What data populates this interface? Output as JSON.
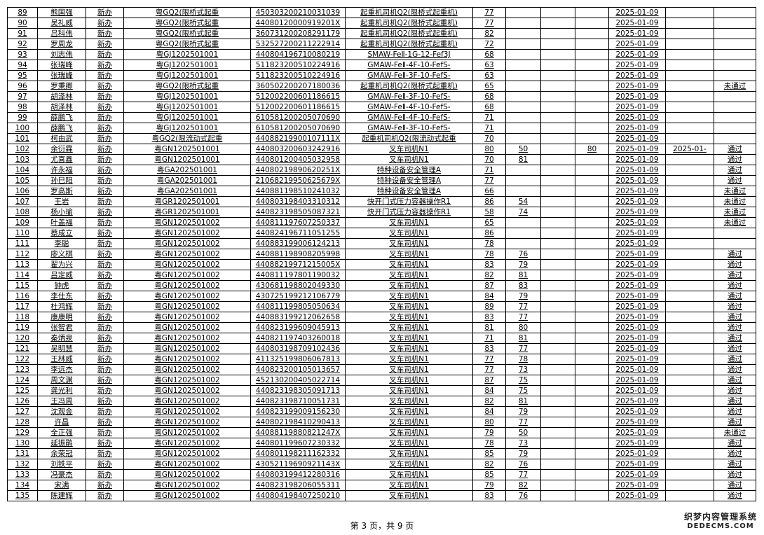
{
  "rows": [
    [
      "89",
      "熊国强",
      "新办",
      "粤GQ2(限桥式起重",
      "450303200210031039",
      "起重机司机Q2(限桥式起重机)",
      "77",
      "",
      "",
      "",
      "2025-01-09",
      "",
      ""
    ],
    [
      "90",
      "吴礼威",
      "新办",
      "粤GQ2(限桥式起重",
      "44080120000919201X",
      "起重机司机Q2(限桥式起重机)",
      "77",
      "",
      "",
      "",
      "2025-01-09",
      "",
      ""
    ],
    [
      "91",
      "吕科伟",
      "新办",
      "粤GQ2(限桥式起重",
      "360731200208291179",
      "起重机司机Q2(限桥式起重机)",
      "82",
      "",
      "",
      "",
      "2025-01-09",
      "",
      ""
    ],
    [
      "92",
      "罗周龙",
      "新办",
      "粤GQ2(限桥式起重",
      "532527200211222914",
      "起重机司机Q2(限桥式起重机)",
      "72",
      "",
      "",
      "",
      "2025-01-09",
      "",
      ""
    ],
    [
      "93",
      "刘志伟",
      "新办",
      "粤GJ1202501001",
      "440804196710080219",
      "SMAW-FeⅡ-1G-12-Fef3J",
      "68",
      "",
      "",
      "",
      "2025-01-09",
      "",
      ""
    ],
    [
      "94",
      "张瑞峰",
      "新办",
      "粤GJ1202501001",
      "511823200510224916",
      "GMAW-FeⅡ-4F-10-FefS-",
      "63",
      "",
      "",
      "",
      "2025-01-09",
      "",
      ""
    ],
    [
      "95",
      "张瑞峰",
      "新办",
      "粤GJ1202501001",
      "511823200510224916",
      "GMAW-FeⅡ-3F-10-FefS-",
      "63",
      "",
      "",
      "",
      "2025-01-09",
      "",
      ""
    ],
    [
      "96",
      "罗秉卿",
      "新办",
      "粤GQ2(限桥式起重",
      "360502200207180036",
      "起重机司机Q2(限桥式起重机)",
      "65",
      "",
      "",
      "",
      "2025-01-09",
      "",
      "未通过"
    ],
    [
      "97",
      "胡泽林",
      "新办",
      "粤GJ1202501001",
      "512002200601186615",
      "GMAW-FeⅡ-3F-10-FefS-",
      "68",
      "",
      "",
      "",
      "2025-01-09",
      "",
      ""
    ],
    [
      "98",
      "胡泽林",
      "新办",
      "粤GJ1202501001",
      "512002200601186615",
      "GMAW-FeⅡ-4F-10-FefS-",
      "68",
      "",
      "",
      "",
      "2025-01-09",
      "",
      ""
    ],
    [
      "99",
      "薛鹏飞",
      "新办",
      "粤GJ1202501001",
      "610581200205070690",
      "GMAW-FeⅡ-4F-10-FefS-",
      "71",
      "",
      "",
      "",
      "2025-01-09",
      "",
      ""
    ],
    [
      "100",
      "薛鹏飞",
      "新办",
      "粤GJ1202501001",
      "610581200205070690",
      "GMAW-FeⅡ-3F-10-FefS-",
      "71",
      "",
      "",
      "",
      "2025-01-09",
      "",
      ""
    ],
    [
      "101",
      "柯由武",
      "新办",
      "粤GQ2(限流动式起重",
      "44088219900107111X",
      "起重机司机Q2(限流动式起重",
      "70",
      "",
      "",
      "",
      "2025-01-09",
      "",
      ""
    ],
    [
      "102",
      "余衍霖",
      "新办",
      "粤GN1202501001",
      "440803200603242916",
      "叉车司机N1",
      "80",
      "50",
      "",
      "80",
      "2025-01-09",
      "2025-01-",
      "通过"
    ],
    [
      "103",
      "尤喜鑫",
      "新办",
      "粤GN1202501001",
      "440801200405032958",
      "叉车司机N1",
      "70",
      "81",
      "",
      "",
      "2025-01-09",
      "",
      "通过"
    ],
    [
      "104",
      "许永福",
      "新办",
      "粤GA202501001",
      "44080219890620251X",
      "特种设备安全管理A",
      "71",
      "",
      "",
      "",
      "2025-01-09",
      "",
      "通过"
    ],
    [
      "105",
      "孙巳阳",
      "新办",
      "粤GA202501001",
      "21068219950625679X",
      "特种设备安全管理A",
      "77",
      "",
      "",
      "",
      "2025-01-09",
      "",
      "通过"
    ],
    [
      "106",
      "罗高斯",
      "新办",
      "粤GA202501001",
      "440881198510241032",
      "特种设备安全管理A",
      "66",
      "",
      "",
      "",
      "2025-01-09",
      "",
      "未通过"
    ],
    [
      "107",
      "王岩",
      "新办",
      "粤GR1202501001",
      "440803198403310312",
      "快开门式压力容器操作R1",
      "86",
      "54",
      "",
      "",
      "2025-01-09",
      "",
      "未通过"
    ],
    [
      "108",
      "杨小瑜",
      "新办",
      "粤GR1202501001",
      "440823198505087321",
      "快开门式压力容器操作R1",
      "58",
      "74",
      "",
      "",
      "2025-01-09",
      "",
      "未通过"
    ],
    [
      "109",
      "叶盖福",
      "新办",
      "粤GN1202501002",
      "440811197607250337",
      "叉车司机N1",
      "65",
      "",
      "",
      "",
      "2025-01-09",
      "",
      "未通过"
    ],
    [
      "110",
      "蔡成立",
      "新办",
      "粤GN1202501002",
      "440824196711051255",
      "叉车司机N1",
      "86",
      "",
      "",
      "",
      "2025-01-09",
      "",
      ""
    ],
    [
      "111",
      "李聪",
      "新办",
      "粤GN1202501002",
      "440883199006124213",
      "叉车司机N1",
      "78",
      "",
      "",
      "",
      "2025-01-09",
      "",
      ""
    ],
    [
      "112",
      "廖义棋",
      "新办",
      "粤GN1202501002",
      "440881198908205998",
      "叉车司机N1",
      "78",
      "76",
      "",
      "",
      "2025-01-09",
      "",
      "通过"
    ],
    [
      "113",
      "翟为兴",
      "新办",
      "粤GN1202501002",
      "44088219971215005X",
      "叉车司机N1",
      "83",
      "79",
      "",
      "",
      "2025-01-09",
      "",
      "通过"
    ],
    [
      "114",
      "吕定威",
      "新办",
      "粤GN1202501002",
      "440811197801190032",
      "叉车司机N1",
      "82",
      "81",
      "",
      "",
      "2025-01-09",
      "",
      "通过"
    ],
    [
      "115",
      "钟虎",
      "新办",
      "粤GN1202501002",
      "430681198802049330",
      "叉车司机N1",
      "87",
      "83",
      "",
      "",
      "2025-01-09",
      "",
      "通过"
    ],
    [
      "116",
      "李仕东",
      "新办",
      "粤GN1202501002",
      "430725199212106779",
      "叉车司机N1",
      "84",
      "79",
      "",
      "",
      "2025-01-09",
      "",
      "通过"
    ],
    [
      "117",
      "杜鸿辉",
      "新办",
      "粤GN1202501002",
      "440811199805050634",
      "叉车司机N1",
      "89",
      "77",
      "",
      "",
      "2025-01-09",
      "",
      "通过"
    ],
    [
      "118",
      "康康明",
      "新办",
      "粤GN1202501002",
      "440883199212062658",
      "叉车司机N1",
      "83",
      "77",
      "",
      "",
      "2025-01-09",
      "",
      "通过"
    ],
    [
      "119",
      "张智君",
      "新办",
      "粤GN1202501002",
      "440823199609045913",
      "叉车司机N1",
      "81",
      "80",
      "",
      "",
      "2025-01-09",
      "",
      "通过"
    ],
    [
      "120",
      "秦炳泉",
      "新办",
      "粤GN1202501002",
      "440821197403260018",
      "叉车司机N1",
      "71",
      "81",
      "",
      "",
      "2025-01-09",
      "",
      "通过"
    ],
    [
      "121",
      "吴明慧",
      "新办",
      "粤GN1202501002",
      "440803198709102436",
      "叉车司机N1",
      "83",
      "77",
      "",
      "",
      "2025-01-09",
      "",
      "通过"
    ],
    [
      "122",
      "王林威",
      "新办",
      "粤GN1202501002",
      "411325199806067813",
      "叉车司机N1",
      "77",
      "78",
      "",
      "",
      "2025-01-09",
      "",
      "通过"
    ],
    [
      "123",
      "李远杰",
      "新办",
      "粤GN1202501002",
      "440823200105013657",
      "叉车司机N1",
      "77",
      "73",
      "",
      "",
      "2025-01-09",
      "",
      "通过"
    ],
    [
      "124",
      "周文渊",
      "新办",
      "粤GN1202501002",
      "452130200405022714",
      "叉车司机N1",
      "87",
      "75",
      "",
      "",
      "2025-01-09",
      "",
      "通过"
    ],
    [
      "125",
      "龚光利",
      "新办",
      "粤GN1202501002",
      "440823198305091713",
      "叉车司机N1",
      "84",
      "75",
      "",
      "",
      "2025-01-09",
      "",
      "通过"
    ],
    [
      "126",
      "王冯周",
      "新办",
      "粤GN1202501002",
      "440823198710051731",
      "叉车司机N1",
      "82",
      "81",
      "",
      "",
      "2025-01-09",
      "",
      "通过"
    ],
    [
      "127",
      "沈观金",
      "新办",
      "粤GN1202501002",
      "440823199009156230",
      "叉车司机N1",
      "84",
      "79",
      "",
      "",
      "2025-01-09",
      "",
      "通过"
    ],
    [
      "128",
      "许昌",
      "新办",
      "粤GN1202501002",
      "440802198410290413",
      "叉车司机N1",
      "80",
      "77",
      "",
      "",
      "2025-01-09",
      "",
      "通过"
    ],
    [
      "129",
      "全正强",
      "新办",
      "粤GN1202501002",
      "44088119880821247X",
      "叉车司机N1",
      "79",
      "50",
      "",
      "",
      "2025-01-09",
      "",
      "未通过"
    ],
    [
      "130",
      "延振鹃",
      "新办",
      "粤GN1202501002",
      "440801199607230332",
      "叉车司机N1",
      "78",
      "73",
      "",
      "",
      "2025-01-09",
      "",
      "通过"
    ],
    [
      "131",
      "余荣冠",
      "新办",
      "粤GN1202501002",
      "440801198211162332",
      "叉车司机N1",
      "85",
      "79",
      "",
      "",
      "2025-01-09",
      "",
      "通过"
    ],
    [
      "132",
      "刘铁平",
      "新办",
      "粤GN1202501002",
      "43052119690921143X",
      "叉车司机N1",
      "82",
      "76",
      "",
      "",
      "2025-01-09",
      "",
      "通过"
    ],
    [
      "133",
      "冯豪杰",
      "新办",
      "粤GN1202501002",
      "440803199412280316",
      "叉车司机N1",
      "85",
      "77",
      "",
      "",
      "2025-01-09",
      "",
      "通过"
    ],
    [
      "134",
      "宋满",
      "新办",
      "粤GN1202501002",
      "440823198206055311",
      "叉车司机N1",
      "79",
      "82",
      "",
      "",
      "2025-01-09",
      "",
      "通过"
    ],
    [
      "135",
      "陈建辉",
      "新办",
      "粤GN1202501002",
      "440804198407250210",
      "叉车司机N1",
      "83",
      "76",
      "",
      "",
      "2025-01-09",
      "",
      "通过"
    ]
  ],
  "footer": {
    "page_text": "第 3 页，共 9 页"
  },
  "watermark": {
    "line1": "织梦内容管理系统",
    "line2": "DEDECMS.COM"
  }
}
